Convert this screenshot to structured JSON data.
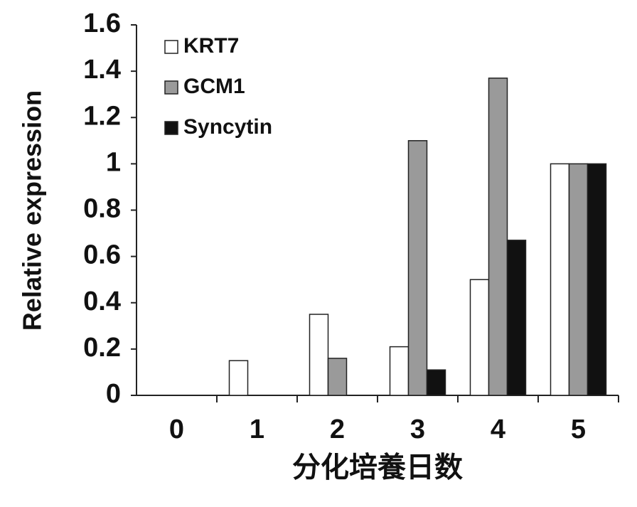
{
  "chart_data": {
    "type": "bar",
    "x_label": "分化培養日数",
    "y_label": "Relative expression",
    "categories": [
      "0",
      "1",
      "2",
      "3",
      "4",
      "5"
    ],
    "series": [
      {
        "name": "KRT7",
        "color": "#ffffff",
        "values": [
          0,
          0.15,
          0.35,
          0.21,
          0.5,
          1
        ]
      },
      {
        "name": "GCM1",
        "color": "#9a9a9a",
        "values": [
          0,
          0,
          0.16,
          1.1,
          1.37,
          1
        ]
      },
      {
        "name": "Syncytin",
        "color": "#111111",
        "values": [
          0,
          0,
          0,
          0.11,
          0.67,
          1
        ]
      }
    ],
    "ylim": [
      0,
      1.6
    ],
    "yticks": [
      0,
      0.2,
      0.4,
      0.6,
      0.8,
      1,
      1.2,
      1.4,
      1.6
    ],
    "grid": false,
    "legend": "upper left"
  }
}
